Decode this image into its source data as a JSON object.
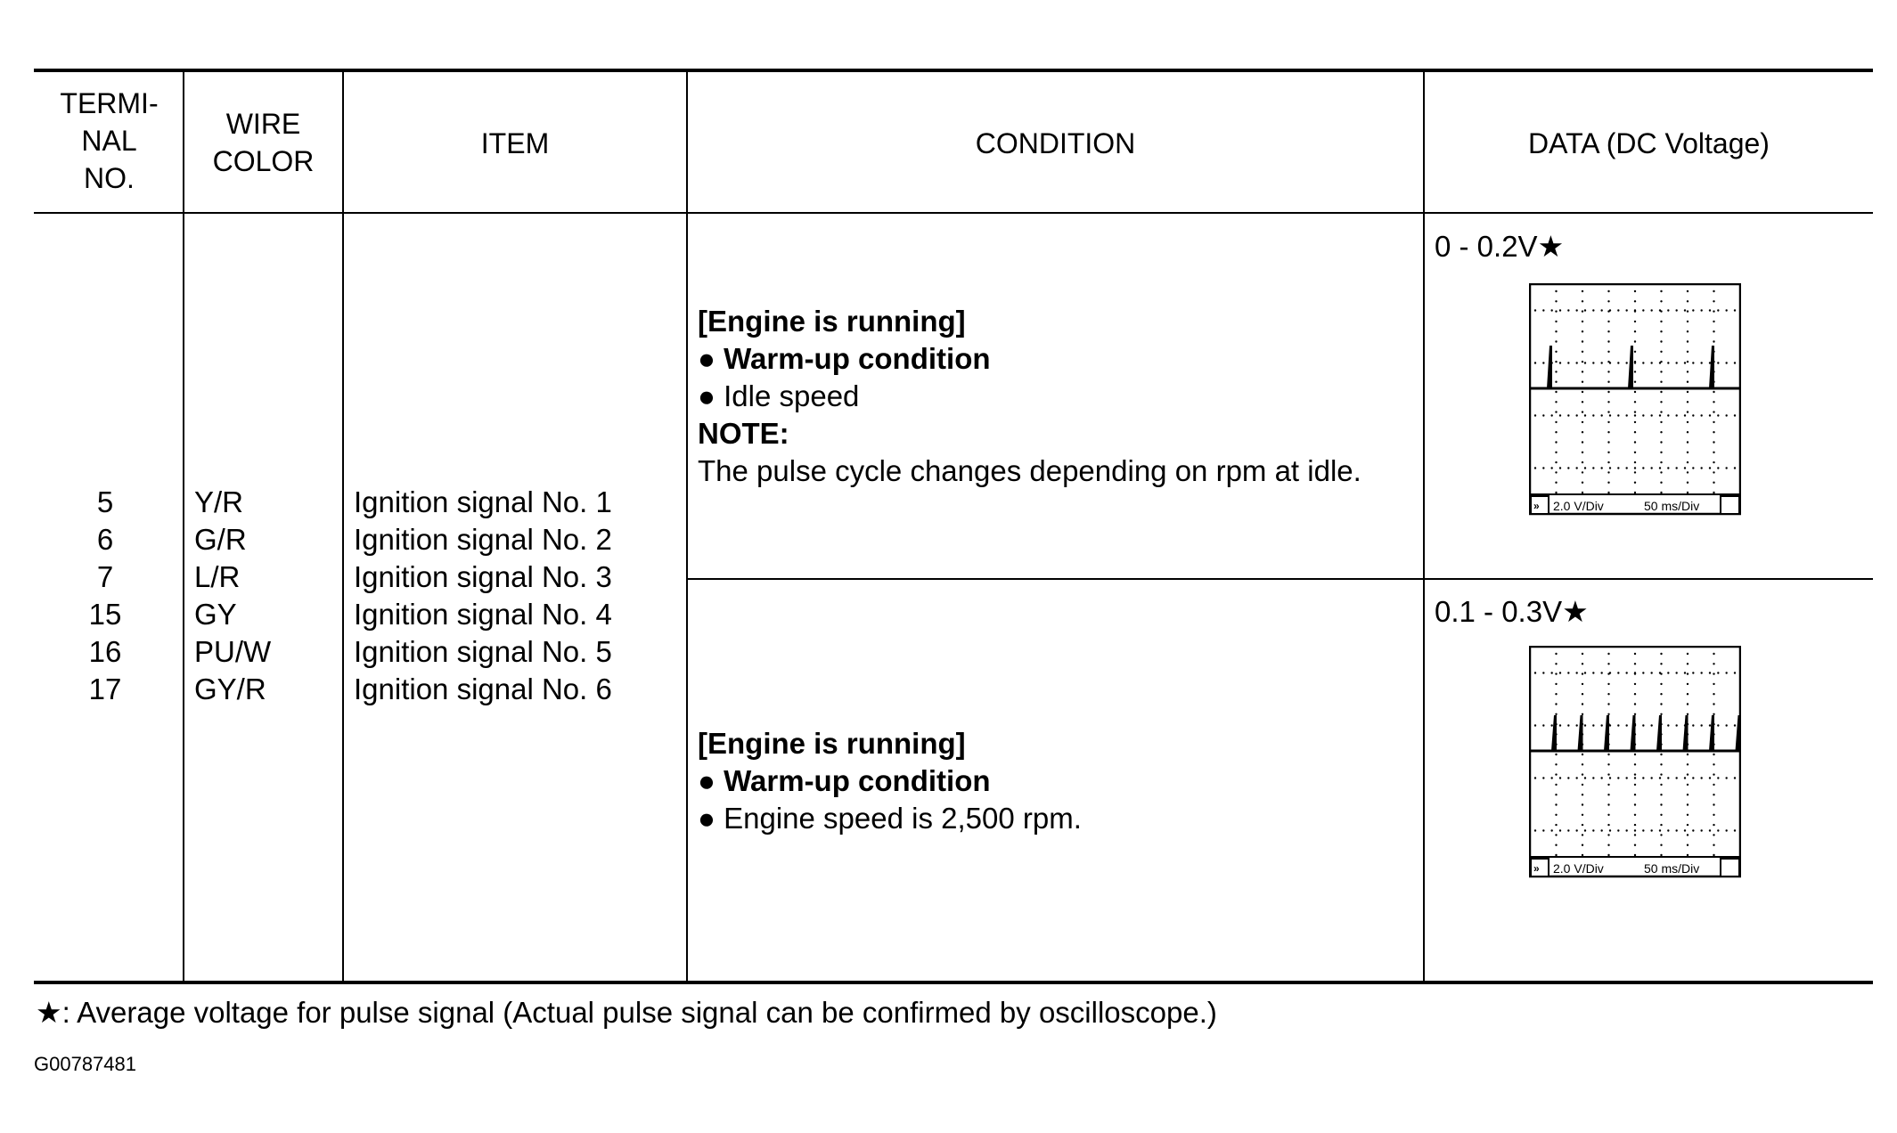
{
  "headers": {
    "terminal": [
      "TERMI-",
      "NAL",
      "NO."
    ],
    "wire": [
      "WIRE",
      "COLOR"
    ],
    "item": "ITEM",
    "condition": "CONDITION",
    "data": "DATA (DC Voltage)"
  },
  "rows": [
    {
      "terminal": "5",
      "wire": "Y/R",
      "item": "Ignition signal No. 1"
    },
    {
      "terminal": "6",
      "wire": "G/R",
      "item": "Ignition signal No. 2"
    },
    {
      "terminal": "7",
      "wire": "L/R",
      "item": "Ignition signal No. 3"
    },
    {
      "terminal": "15",
      "wire": "GY",
      "item": "Ignition signal No. 4"
    },
    {
      "terminal": "16",
      "wire": "PU/W",
      "item": "Ignition signal No. 5"
    },
    {
      "terminal": "17",
      "wire": "GY/R",
      "item": "Ignition signal No. 6"
    }
  ],
  "conditions": [
    {
      "title": "[Engine is running]",
      "bullet1": "Warm-up condition",
      "bullet2": "Idle speed",
      "note_label": "NOTE:",
      "note": "The pulse cycle changes depending on rpm at idle.",
      "data": "0 - 0.2V★",
      "scope": {
        "volts_div": "2.0 V/Div",
        "time_div": "50 ms/Div",
        "pulses": 3
      }
    },
    {
      "title": "[Engine is running]",
      "bullet1": "Warm-up condition",
      "bullet2": "Engine speed is 2,500 rpm.",
      "data": "0.1 - 0.3V★",
      "scope": {
        "volts_div": "2.0 V/Div",
        "time_div": "50 ms/Div",
        "pulses": 8
      }
    }
  ],
  "footnote": "★: Average voltage for pulse signal (Actual pulse signal can be confirmed by oscilloscope.)",
  "figure_code": "G00787481"
}
